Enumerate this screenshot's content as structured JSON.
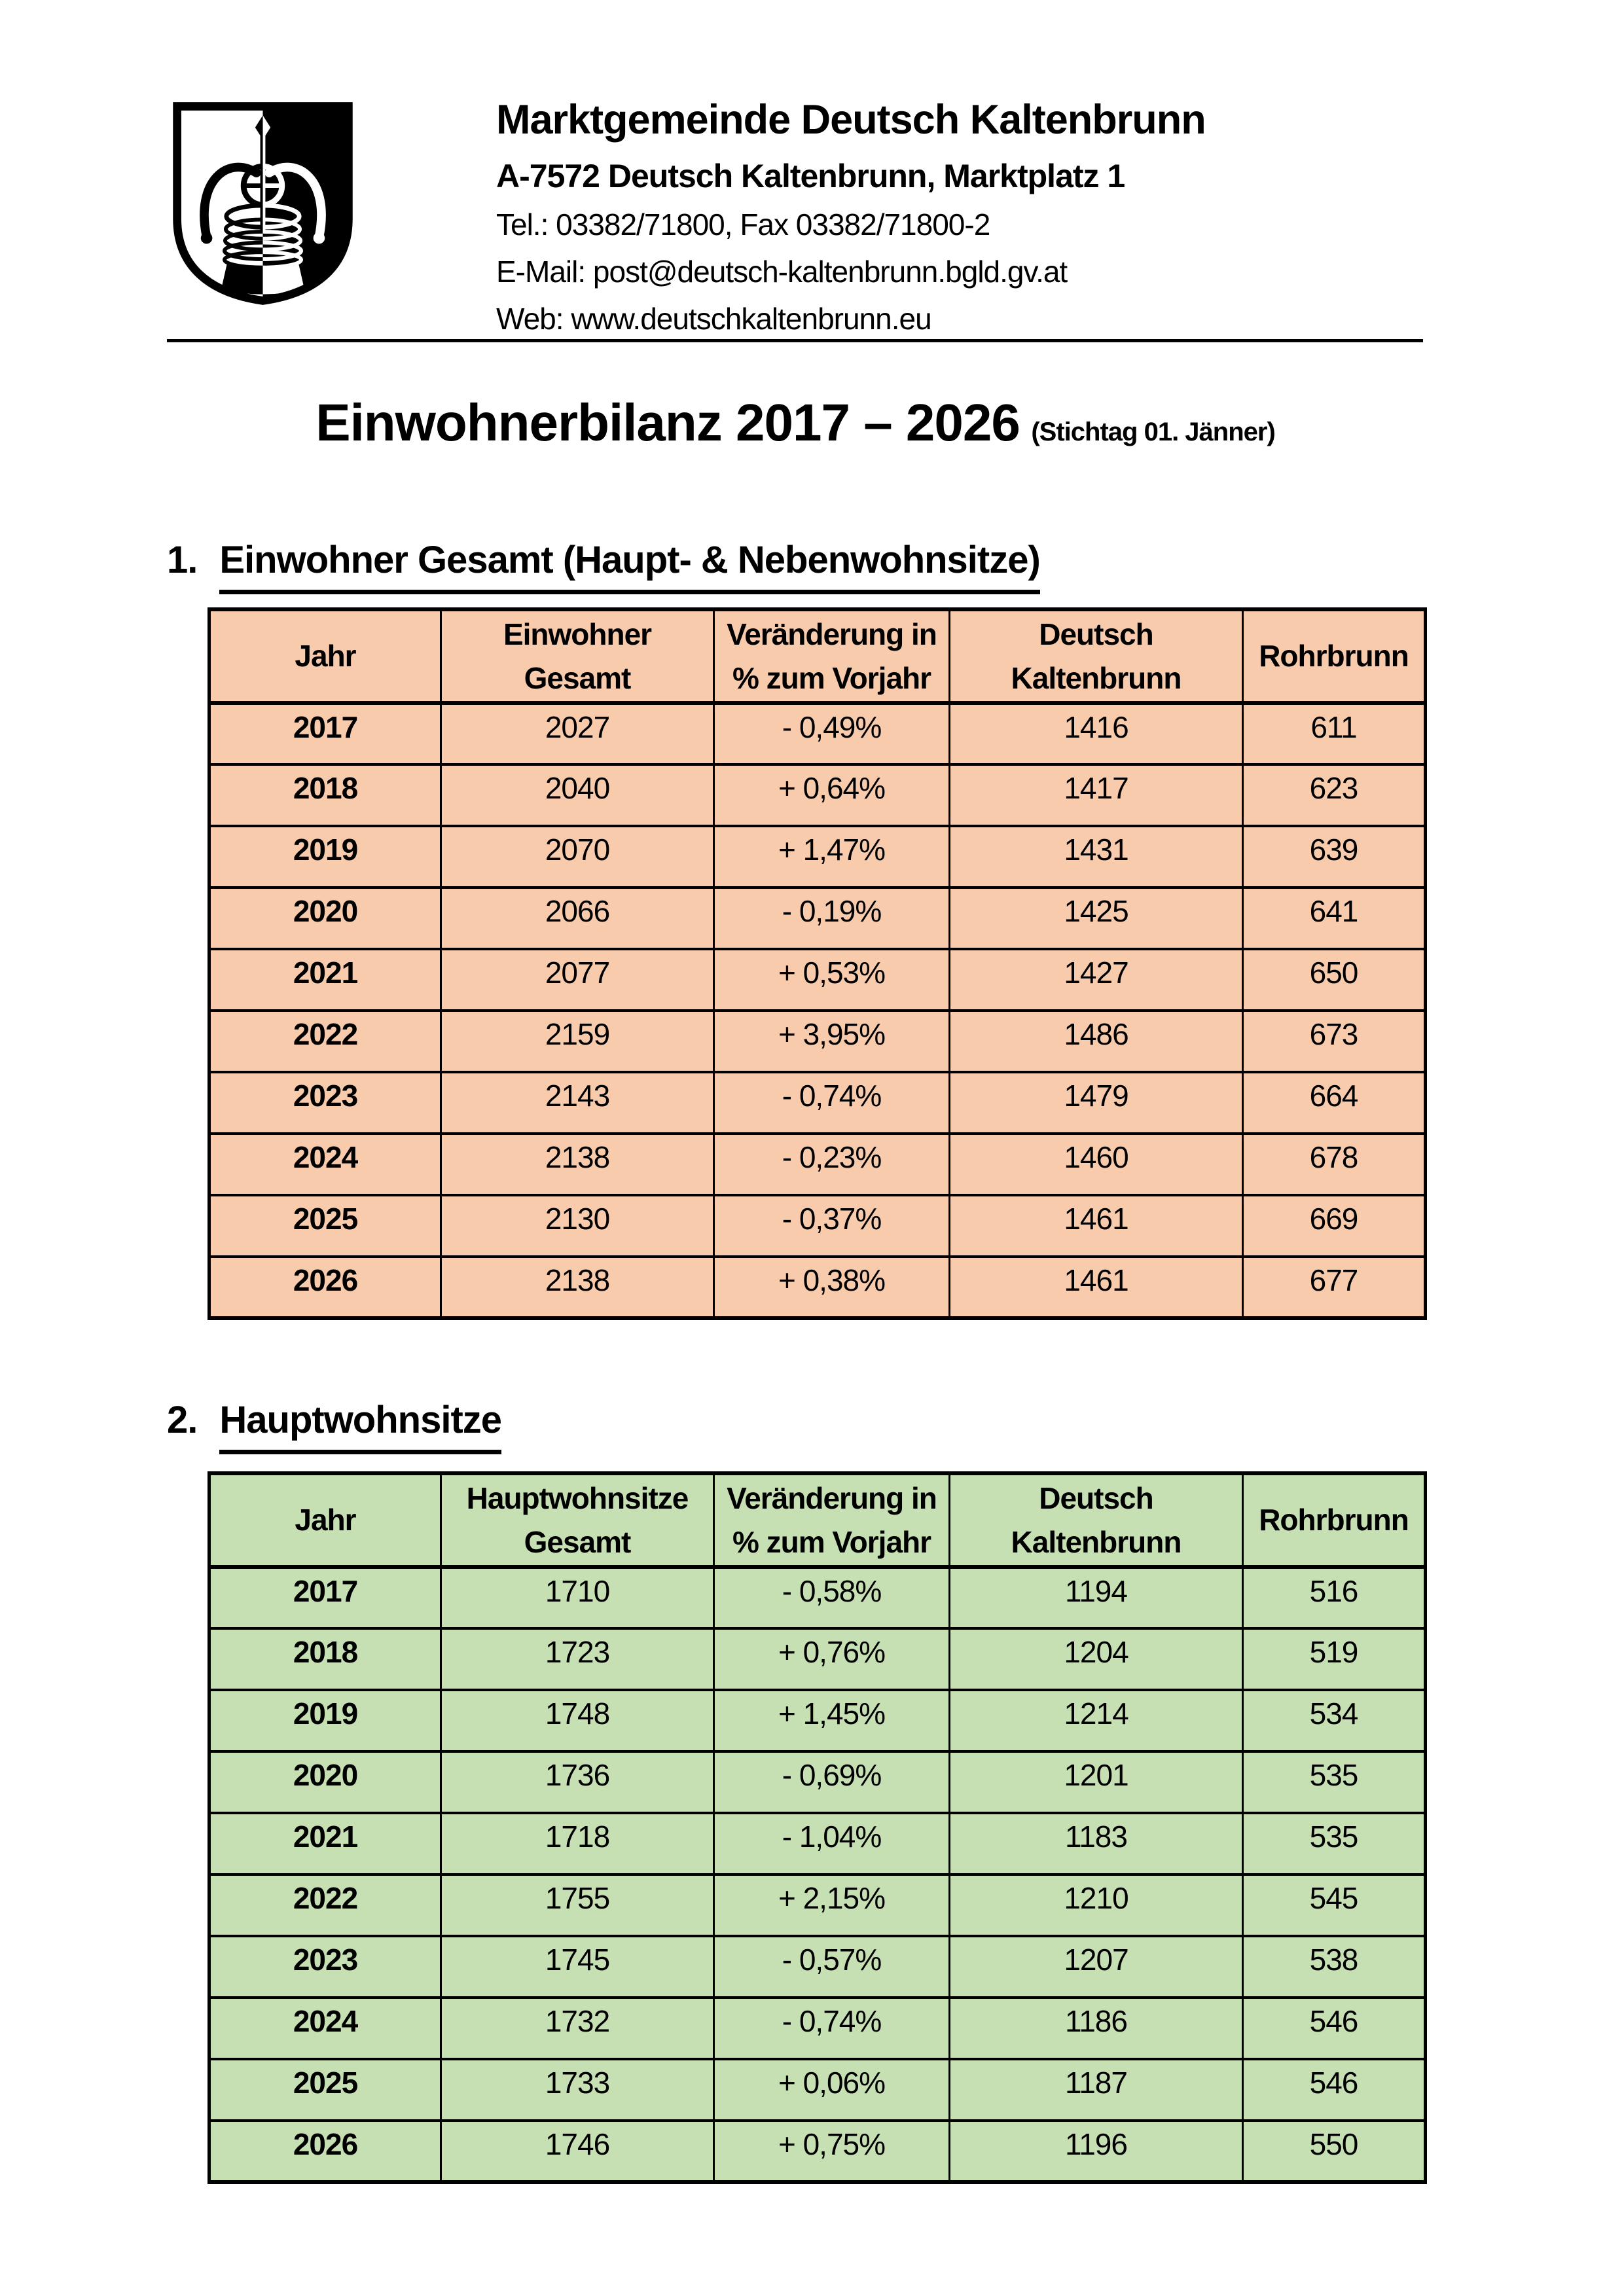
{
  "letterhead": {
    "logo_icon": "coat-of-arms-shield-icon",
    "org_name": "Marktgemeinde Deutsch Kaltenbrunn",
    "address": "A-7572 Deutsch Kaltenbrunn, Marktplatz 1",
    "phone_fax": "Tel.: 03382/71800, Fax 03382/71800-2",
    "email": "E-Mail: post@deutsch-kaltenbrunn.bgld.gv.at",
    "web": "Web: www.deutschkaltenbrunn.eu"
  },
  "document_title": {
    "main": "Einwohnerbilanz 2017 – 2026",
    "suffix": "(Stichtag 01. Jänner)"
  },
  "colors": {
    "table1_fill": "#F8CBAD",
    "table2_fill": "#C6E0B4",
    "border": "#000000"
  },
  "sections": [
    {
      "number": "1.",
      "heading": "Einwohner Gesamt (Haupt- & Nebenwohnsitze)",
      "table": {
        "fill_color": "#F8CBAD",
        "columns": [
          "Jahr",
          "Einwohner\nGesamt",
          "Veränderung in\n% zum Vorjahr",
          "Deutsch\nKaltenbrunn",
          "Rohrbrunn"
        ],
        "rows": [
          [
            "2017",
            "2027",
            "- 0,49%",
            "1416",
            "611"
          ],
          [
            "2018",
            "2040",
            "+ 0,64%",
            "1417",
            "623"
          ],
          [
            "2019",
            "2070",
            "+ 1,47%",
            "1431",
            "639"
          ],
          [
            "2020",
            "2066",
            "- 0,19%",
            "1425",
            "641"
          ],
          [
            "2021",
            "2077",
            "+ 0,53%",
            "1427",
            "650"
          ],
          [
            "2022",
            "2159",
            "+ 3,95%",
            "1486",
            "673"
          ],
          [
            "2023",
            "2143",
            "- 0,74%",
            "1479",
            "664"
          ],
          [
            "2024",
            "2138",
            "- 0,23%",
            "1460",
            "678"
          ],
          [
            "2025",
            "2130",
            "- 0,37%",
            "1461",
            "669"
          ],
          [
            "2026",
            "2138",
            "+ 0,38%",
            "1461",
            "677"
          ]
        ]
      }
    },
    {
      "number": "2.",
      "heading": "Hauptwohnsitze",
      "table": {
        "fill_color": "#C6E0B4",
        "columns": [
          "Jahr",
          "Hauptwohnsitze\nGesamt",
          "Veränderung in\n% zum Vorjahr",
          "Deutsch\nKaltenbrunn",
          "Rohrbrunn"
        ],
        "rows": [
          [
            "2017",
            "1710",
            "- 0,58%",
            "1194",
            "516"
          ],
          [
            "2018",
            "1723",
            "+ 0,76%",
            "1204",
            "519"
          ],
          [
            "2019",
            "1748",
            "+ 1,45%",
            "1214",
            "534"
          ],
          [
            "2020",
            "1736",
            "- 0,69%",
            "1201",
            "535"
          ],
          [
            "2021",
            "1718",
            "- 1,04%",
            "1183",
            "535"
          ],
          [
            "2022",
            "1755",
            "+ 2,15%",
            "1210",
            "545"
          ],
          [
            "2023",
            "1745",
            "- 0,57%",
            "1207",
            "538"
          ],
          [
            "2024",
            "1732",
            "- 0,74%",
            "1186",
            "546"
          ],
          [
            "2025",
            "1733",
            "+ 0,06%",
            "1187",
            "546"
          ],
          [
            "2026",
            "1746",
            "+ 0,75%",
            "1196",
            "550"
          ]
        ]
      }
    }
  ]
}
